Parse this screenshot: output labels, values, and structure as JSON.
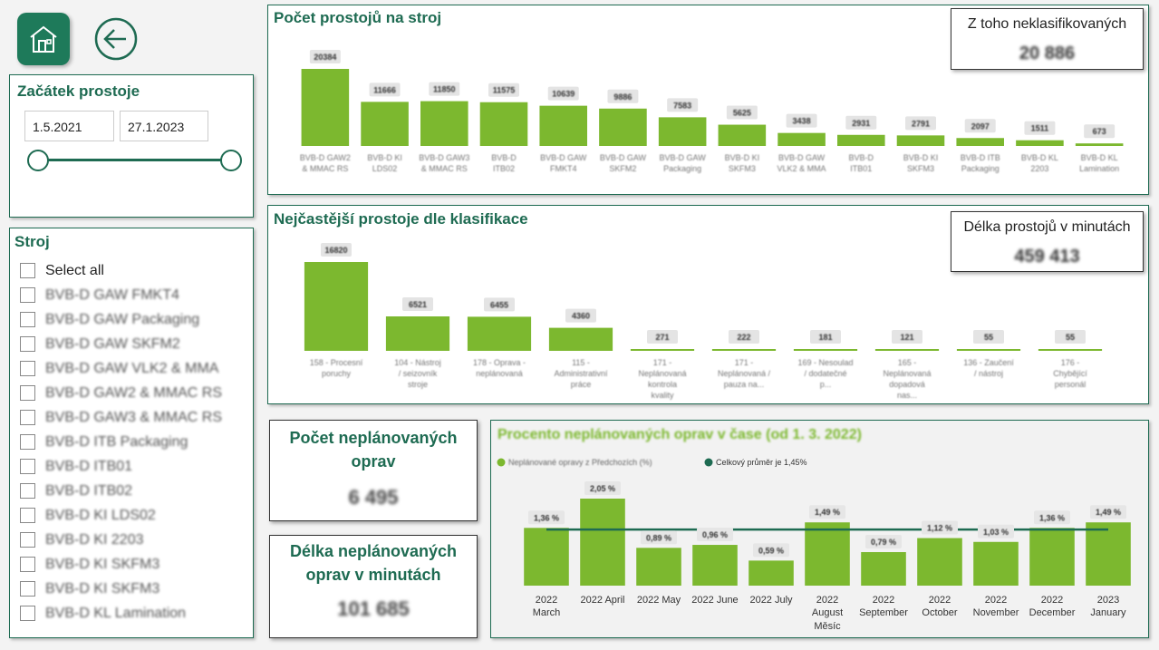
{
  "nav": {
    "home_icon": "home-icon",
    "back_icon": "back-arrow-icon"
  },
  "date_filter": {
    "title": "Začátek prostoje",
    "start": "1.5.2021",
    "end": "27.1.2023"
  },
  "machine_filter": {
    "title": "Stroj",
    "items": [
      "Select all",
      "BVB-D GAW FMKT4",
      "BVB-D GAW Packaging",
      "BVB-D GAW SKFM2",
      "BVB-D GAW VLK2 & MMA",
      "BVB-D GAW2 & MMAC RS",
      "BVB-D GAW3 & MMAC RS",
      "BVB-D ITB Packaging",
      "BVB-D ITB01",
      "BVB-D ITB02",
      "BVB-D KI LDS02",
      "BVB-D KI 2203",
      "BVB-D KI SKFM3",
      "BVB-D KI SKFM3",
      "BVB-D KL Lamination"
    ]
  },
  "kpi_top": {
    "label": "Z toho neklasifikovaných",
    "value": "20 886"
  },
  "kpi_mid": {
    "label": "Délka prostojů v minutách",
    "value": "459 413"
  },
  "kpi_unplanned_count": {
    "label": "Počet neplánovaných oprav",
    "value": "6 495"
  },
  "kpi_unplanned_minutes": {
    "label": "Délka neplánovaných oprav v minutách",
    "value": "101 685"
  },
  "colors": {
    "bar": "#7cb82f",
    "accent": "#1e6b52",
    "line": "#1e6b52"
  },
  "chart_data": [
    {
      "type": "bar",
      "title": "Počet prostojů na stroj",
      "categories": [
        "BVB-D GAW2 & MMAC RS",
        "BVB-D KI LDS02",
        "BVB-D GAW3 & MMAC RS",
        "BVB-D ITB02",
        "BVB-D GAW FMKT4",
        "BVB-D GAW SKFM2",
        "BVB-D GAW Packaging",
        "BVB-D KI SKFM3",
        "BVB-D GAW VLK2 & MMA",
        "BVB-D ITB01",
        "BVB-D KI SKFM3",
        "BVB-D ITB Packaging",
        "BVB-D KL 2203",
        "BVB-D KL Lamination"
      ],
      "values": [
        20384,
        11666,
        11850,
        11575,
        10639,
        9886,
        7583,
        5625,
        3438,
        2931,
        2791,
        2097,
        1511,
        673
      ],
      "labels": [
        "20384",
        "11666",
        "11850",
        "11575",
        "10639",
        "9886",
        "7583",
        "5625",
        "3438",
        "2931",
        "2791",
        "2097",
        "1511",
        "673"
      ]
    },
    {
      "type": "bar",
      "title": "Nejčastější prostoje dle klasifikace",
      "categories": [
        "158 - Procesní poruchy",
        "104 - Nástroj / seizovník stroje",
        "178 - Oprava - neplánovaná",
        "115 - Administrativní práce",
        "171 - Neplánovaná kontrola kvality",
        "171 - Neplánovaná / pauza na...",
        "169 - Nesoulad / dodatečné p...",
        "165 - Neplánovaná dopadová nas...",
        "136 - Zaučení / nástroj",
        "176 - Chybějící personál"
      ],
      "values": [
        16820,
        6521,
        6455,
        4360,
        271,
        222,
        181,
        121,
        55,
        55
      ],
      "labels": [
        "16820",
        "6521",
        "6455",
        "4360",
        "271",
        "222",
        "181",
        "121",
        "55",
        "55"
      ]
    },
    {
      "type": "bar",
      "title": "Procento neplánovaných oprav v čase (od 1. 3. 2022)",
      "xlabel": "Měsíc",
      "legend": [
        "Neplánované opravy z Předchozích (%)",
        "Celkový průměr je 1,45%"
      ],
      "categories": [
        [
          "2022",
          "March"
        ],
        [
          "2022 April"
        ],
        [
          "2022 May"
        ],
        [
          "2022 June"
        ],
        [
          "2022 July"
        ],
        [
          "2022",
          "August"
        ],
        [
          "2022",
          "September"
        ],
        [
          "2022",
          "October"
        ],
        [
          "2022",
          "November"
        ],
        [
          "2022",
          "December"
        ],
        [
          "2023",
          "January"
        ]
      ],
      "values": [
        1.36,
        2.05,
        0.89,
        0.96,
        0.59,
        1.49,
        0.79,
        1.12,
        1.03,
        1.36,
        1.49
      ],
      "labels": [
        "1,36 %",
        "2,05 %",
        "0,89 %",
        "0,96 %",
        "0,59 %",
        "1,49 %",
        "0,79 %",
        "1,12 %",
        "1,03 %",
        "1,36 %",
        "1,49 %"
      ],
      "avg": 1.45
    }
  ]
}
